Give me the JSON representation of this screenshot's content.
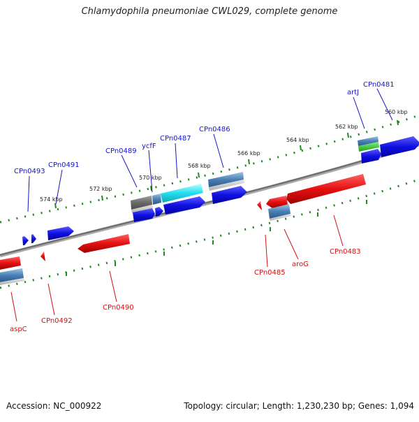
{
  "header": {
    "title": "Chlamydophila pneumoniae CWL029, complete genome"
  },
  "footer": {
    "accession": "Accession: NC_000922",
    "summary": "Topology: circular; Length: 1,230,230 bp; Genes: 1,094"
  },
  "ruler": {
    "labels": [
      "560 kbp",
      "562 kbp",
      "564 kbp",
      "566 kbp",
      "568 kbp",
      "570 kbp",
      "572 kbp",
      "574 kbp"
    ]
  },
  "genes": {
    "forward": [
      "CPn0481",
      "artJ",
      "CPn0486",
      "CPn0487",
      "ycfF",
      "CPn0489",
      "CPn0491",
      "CPn0493"
    ],
    "reverse": [
      "CPn0483",
      "aroG",
      "CPn0485",
      "CPn0490",
      "CPn0492",
      "aspC"
    ]
  },
  "colors": {
    "forward_gene": "#1a1ae0",
    "reverse_gene": "#e01515",
    "backbone": "#808080",
    "tick": "#1f8a1f",
    "feature_blue": "#4a7fb5",
    "feature_cyan": "#22ddee",
    "feature_gray": "#707070",
    "feature_green": "#2bbf2b"
  }
}
